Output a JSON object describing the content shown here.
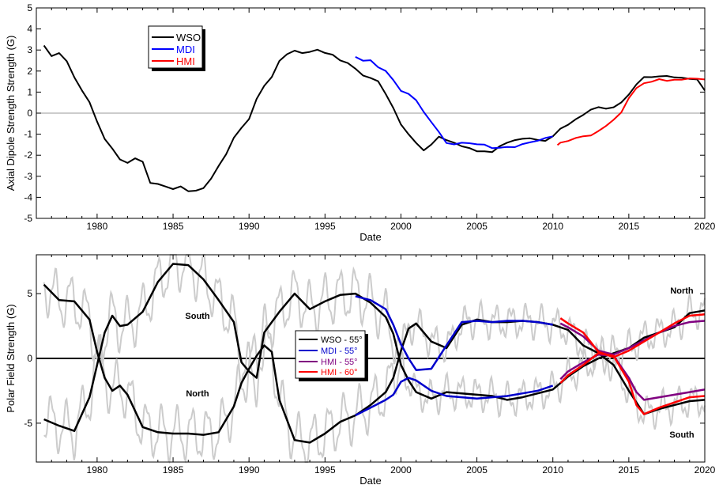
{
  "chart_data": [
    {
      "type": "line",
      "xlabel": "Date",
      "ylabel": "Axial Dipole Strength Strength (G)",
      "xlim": [
        1976,
        2020
      ],
      "ylim": [
        -5,
        5
      ],
      "xticks": [
        "1980",
        "1985",
        "1990",
        "1995",
        "2000",
        "2005",
        "2010",
        "2015",
        "2020"
      ],
      "yticks": [
        "5",
        "4",
        "3",
        "2",
        "1",
        "0",
        "-1",
        "-2",
        "-3",
        "-4",
        "-5"
      ],
      "zero_line": true,
      "legend_position": "top-left",
      "series": [
        {
          "name": "WSO",
          "color": "#000000",
          "x": [
            1976.5,
            1977.0,
            1977.5,
            1978.0,
            1978.5,
            1979.0,
            1979.5,
            1980.0,
            1980.5,
            1981.0,
            1981.5,
            1982.0,
            1982.5,
            1983.0,
            1983.5,
            1984.0,
            1984.5,
            1985.0,
            1985.5,
            1986.0,
            1986.5,
            1987.0,
            1987.5,
            1988.0,
            1988.5,
            1989.0,
            1989.5,
            1990.0,
            1990.5,
            1991.0,
            1991.5,
            1992.0,
            1992.5,
            1993.0,
            1993.5,
            1994.0,
            1994.5,
            1995.0,
            1995.5,
            1996.0,
            1996.5,
            1997.0,
            1997.5,
            1998.0,
            1998.5,
            1999.0,
            1999.5,
            2000.0,
            2000.5,
            2001.0,
            2001.5,
            2002.0,
            2002.5,
            2003.0,
            2003.5,
            2004.0,
            2004.5,
            2005.0,
            2005.5,
            2006.0,
            2006.5,
            2007.0,
            2007.5,
            2008.0,
            2008.5,
            2009.0,
            2009.5,
            2010.0,
            2010.5,
            2011.0,
            2011.5,
            2012.0,
            2012.5,
            2013.0,
            2013.5,
            2014.0,
            2014.5,
            2015.0,
            2015.5,
            2016.0,
            2016.5,
            2017.0,
            2017.5,
            2018.0,
            2018.5,
            2019.0,
            2019.5,
            2020.0
          ],
          "y": [
            3.1,
            2.6,
            2.8,
            2.5,
            1.8,
            1.2,
            0.6,
            -0.4,
            -1.3,
            -1.8,
            -2.3,
            -2.4,
            -2.1,
            -2.2,
            -3.2,
            -3.3,
            -3.5,
            -3.7,
            -3.6,
            -3.8,
            -3.7,
            -3.5,
            -3.0,
            -2.4,
            -1.9,
            -1.2,
            -0.8,
            -0.4,
            0.6,
            1.3,
            1.8,
            2.6,
            2.9,
            3.0,
            2.8,
            2.8,
            2.9,
            2.8,
            2.8,
            2.6,
            2.5,
            2.2,
            1.8,
            1.6,
            1.4,
            0.8,
            0.2,
            -0.5,
            -0.9,
            -1.3,
            -1.7,
            -1.5,
            -1.2,
            -1.4,
            -1.5,
            -1.6,
            -1.6,
            -1.7,
            -1.7,
            -1.8,
            -1.6,
            -1.5,
            -1.4,
            -1.3,
            -1.2,
            -1.2,
            -1.2,
            -1.0,
            -0.7,
            -0.6,
            -0.4,
            -0.2,
            0.1,
            0.3,
            0.3,
            0.4,
            0.6,
            0.9,
            1.3,
            1.6,
            1.6,
            1.7,
            1.8,
            1.8,
            1.8,
            1.7,
            1.6,
            1.0
          ]
        },
        {
          "name": "MDI",
          "color": "#0000ff",
          "x": [
            1997.0,
            1997.5,
            1998.0,
            1998.5,
            1999.0,
            1999.5,
            2000.0,
            2000.5,
            2001.0,
            2001.5,
            2002.0,
            2002.5,
            2003.0,
            2003.5,
            2004.0,
            2004.5,
            2005.0,
            2005.5,
            2006.0,
            2006.5,
            2007.0,
            2007.5,
            2008.0,
            2008.5,
            2009.0,
            2009.5,
            2010.0
          ],
          "y": [
            2.6,
            2.5,
            2.6,
            2.3,
            2.1,
            1.6,
            1.0,
            0.8,
            0.5,
            0.0,
            -0.4,
            -0.8,
            -1.3,
            -1.4,
            -1.4,
            -1.5,
            -1.6,
            -1.6,
            -1.7,
            -1.6,
            -1.5,
            -1.5,
            -1.4,
            -1.4,
            -1.4,
            -1.3,
            -1.2
          ]
        },
        {
          "name": "HMI",
          "color": "#ff0000",
          "x": [
            2010.3,
            2010.5,
            2011.0,
            2011.5,
            2012.0,
            2012.5,
            2013.0,
            2013.5,
            2014.0,
            2014.5,
            2015.0,
            2015.5,
            2016.0,
            2016.5,
            2017.0,
            2017.5,
            2018.0,
            2018.5,
            2019.0,
            2019.5,
            2020.0
          ],
          "y": [
            -1.4,
            -1.4,
            -1.4,
            -1.3,
            -1.2,
            -1.1,
            -0.8,
            -0.5,
            -0.2,
            0.1,
            0.7,
            1.1,
            1.3,
            1.4,
            1.6,
            1.6,
            1.7,
            1.7,
            1.7,
            1.6,
            1.5
          ]
        }
      ]
    },
    {
      "type": "line",
      "xlabel": "Date",
      "ylabel": "Polar Field Strength (G)",
      "xlim": [
        1976,
        2020
      ],
      "ylim": [
        -8,
        8
      ],
      "xticks": [
        "1980",
        "1985",
        "1990",
        "1995",
        "2000",
        "2005",
        "2010",
        "2015",
        "2020"
      ],
      "yticks": [
        "5",
        "0",
        "-5"
      ],
      "zero_line": true,
      "legend_position": "center",
      "annotations": [
        "South",
        "North",
        "North",
        "South"
      ],
      "series": [
        {
          "name": "WSO - 55°",
          "color": "#000000",
          "x": [
            1976.5,
            1977.5,
            1978.5,
            1979.5,
            1980.0,
            1980.5,
            1981.0,
            1981.5,
            1982.0,
            1983.0,
            1984.0,
            1985.0,
            1986.0,
            1987.0,
            1988.0,
            1989.0,
            1989.5,
            1990.0,
            1990.5,
            1991.0,
            1991.5,
            1992.0,
            1993.0,
            1994.0,
            1995.0,
            1996.0,
            1997.0,
            1998.0,
            1999.0,
            1999.5,
            2000.0,
            2000.5,
            2001.0,
            2002.0,
            2003.0,
            2004.0,
            2005.0,
            2006.0,
            2007.0,
            2008.0,
            2009.0,
            2010.0,
            2011.0,
            2012.0,
            2013.0,
            2014.0,
            2015.0,
            2016.0,
            2017.0,
            2018.0,
            2019.0,
            2020.0
          ],
          "y": [
            5.7,
            4.5,
            4.4,
            3.0,
            0.5,
            -1.5,
            -2.5,
            -2.1,
            -2.8,
            -5.3,
            -5.7,
            -5.8,
            -5.8,
            -5.9,
            -5.7,
            -3.7,
            -1.9,
            -0.8,
            0.2,
            1.0,
            0.5,
            -3.2,
            -6.3,
            -6.5,
            -5.8,
            -4.9,
            -4.4,
            -3.6,
            -2.6,
            -1.5,
            0.6,
            2.3,
            2.7,
            1.3,
            0.8,
            2.6,
            3.0,
            2.8,
            2.8,
            2.9,
            2.8,
            2.6,
            2.2,
            1.0,
            0.4,
            -0.5,
            -2.5,
            -4.3,
            -3.9,
            -3.6,
            -3.3,
            -3.2
          ]
        },
        {
          "name": "WSO - 55°",
          "color": "#000000",
          "x": [
            1976.5,
            1977.5,
            1978.5,
            1979.5,
            1980.0,
            1980.5,
            1981.0,
            1981.5,
            1982.0,
            1983.0,
            1984.0,
            1985.0,
            1986.0,
            1987.0,
            1988.0,
            1989.0,
            1989.5,
            1990.0,
            1990.5,
            1991.0,
            1991.5,
            1992.0,
            1993.0,
            1994.0,
            1995.0,
            1996.0,
            1997.0,
            1998.0,
            1999.0,
            1999.5,
            2000.0,
            2000.5,
            2001.0,
            2002.0,
            2003.0,
            2004.0,
            2005.0,
            2006.0,
            2007.0,
            2008.0,
            2009.0,
            2010.0,
            2011.0,
            2012.0,
            2013.0,
            2014.0,
            2015.0,
            2016.0,
            2017.0,
            2018.0,
            2019.0,
            2020.0
          ],
          "y": [
            -4.7,
            -5.2,
            -5.6,
            -3.0,
            -0.5,
            2.0,
            3.3,
            2.5,
            2.6,
            3.6,
            5.9,
            7.3,
            7.2,
            6.1,
            4.5,
            2.8,
            -0.3,
            -1.0,
            -1.5,
            2.0,
            2.8,
            3.6,
            5.0,
            3.8,
            4.4,
            4.9,
            5.0,
            4.3,
            3.2,
            1.9,
            -0.5,
            -1.7,
            -2.6,
            -3.1,
            -2.6,
            -2.7,
            -2.8,
            -2.9,
            -3.2,
            -3.0,
            -2.7,
            -2.4,
            -1.4,
            -0.6,
            0.0,
            0.4,
            0.8,
            1.6,
            2.0,
            2.4,
            3.5,
            3.7
          ]
        },
        {
          "name": "MDI - 55°",
          "color": "#0000cc",
          "x": [
            1997.0,
            1998.0,
            1999.0,
            1999.5,
            2000.0,
            2000.5,
            2001.0,
            2002.0,
            2003.0,
            2004.0,
            2005.0,
            2006.0,
            2007.0,
            2008.0,
            2009.0,
            2010.0
          ],
          "y": [
            4.8,
            4.5,
            3.8,
            2.6,
            1.1,
            0.0,
            -0.9,
            -0.8,
            1.0,
            2.8,
            2.9,
            2.8,
            2.9,
            2.9,
            2.8,
            2.6
          ]
        },
        {
          "name": "MDI - 55°",
          "color": "#0000cc",
          "x": [
            1997.0,
            1998.0,
            1999.0,
            1999.5,
            2000.0,
            2000.5,
            2001.0,
            2002.0,
            2003.0,
            2004.0,
            2005.0,
            2006.0,
            2007.0,
            2008.0,
            2009.0,
            2010.0
          ],
          "y": [
            -4.4,
            -3.8,
            -3.2,
            -2.8,
            -1.8,
            -1.5,
            -1.7,
            -2.5,
            -2.9,
            -3.0,
            -3.1,
            -3.0,
            -2.9,
            -2.7,
            -2.5,
            -2.1
          ]
        },
        {
          "name": "HMI - 55°",
          "color": "#800080",
          "x": [
            2010.5,
            2011.0,
            2012.0,
            2013.0,
            2014.0,
            2015.0,
            2015.5,
            2016.0,
            2017.0,
            2018.0,
            2019.0,
            2020.0
          ],
          "y": [
            -1.6,
            -1.0,
            -0.3,
            0.3,
            0.2,
            -1.5,
            -2.6,
            -3.2,
            -3.0,
            -2.8,
            -2.6,
            -2.4
          ]
        },
        {
          "name": "HMI - 55°",
          "color": "#800080",
          "x": [
            2010.5,
            2011.0,
            2012.0,
            2013.0,
            2014.0,
            2015.0,
            2016.0,
            2017.0,
            2018.0,
            2019.0,
            2020.0
          ],
          "y": [
            2.7,
            2.4,
            1.7,
            0.6,
            0.3,
            0.8,
            1.4,
            2.0,
            2.5,
            2.8,
            2.9
          ]
        },
        {
          "name": "HMI - 60°",
          "color": "#ff0000",
          "x": [
            2010.5,
            2011.0,
            2012.0,
            2013.0,
            2014.0,
            2015.0,
            2015.5,
            2016.0,
            2017.0,
            2018.0,
            2019.0,
            2020.0
          ],
          "y": [
            -1.9,
            -1.3,
            -0.5,
            0.4,
            0.2,
            -1.8,
            -3.6,
            -4.3,
            -3.8,
            -3.4,
            -3.0,
            -2.9
          ]
        },
        {
          "name": "HMI - 60°",
          "color": "#ff0000",
          "x": [
            2010.5,
            2011.0,
            2012.0,
            2013.0,
            2014.0,
            2015.0,
            2016.0,
            2017.0,
            2018.0,
            2019.0,
            2020.0
          ],
          "y": [
            3.1,
            2.7,
            2.0,
            0.5,
            0.1,
            0.6,
            1.3,
            2.0,
            2.7,
            3.3,
            3.4
          ]
        }
      ]
    }
  ]
}
